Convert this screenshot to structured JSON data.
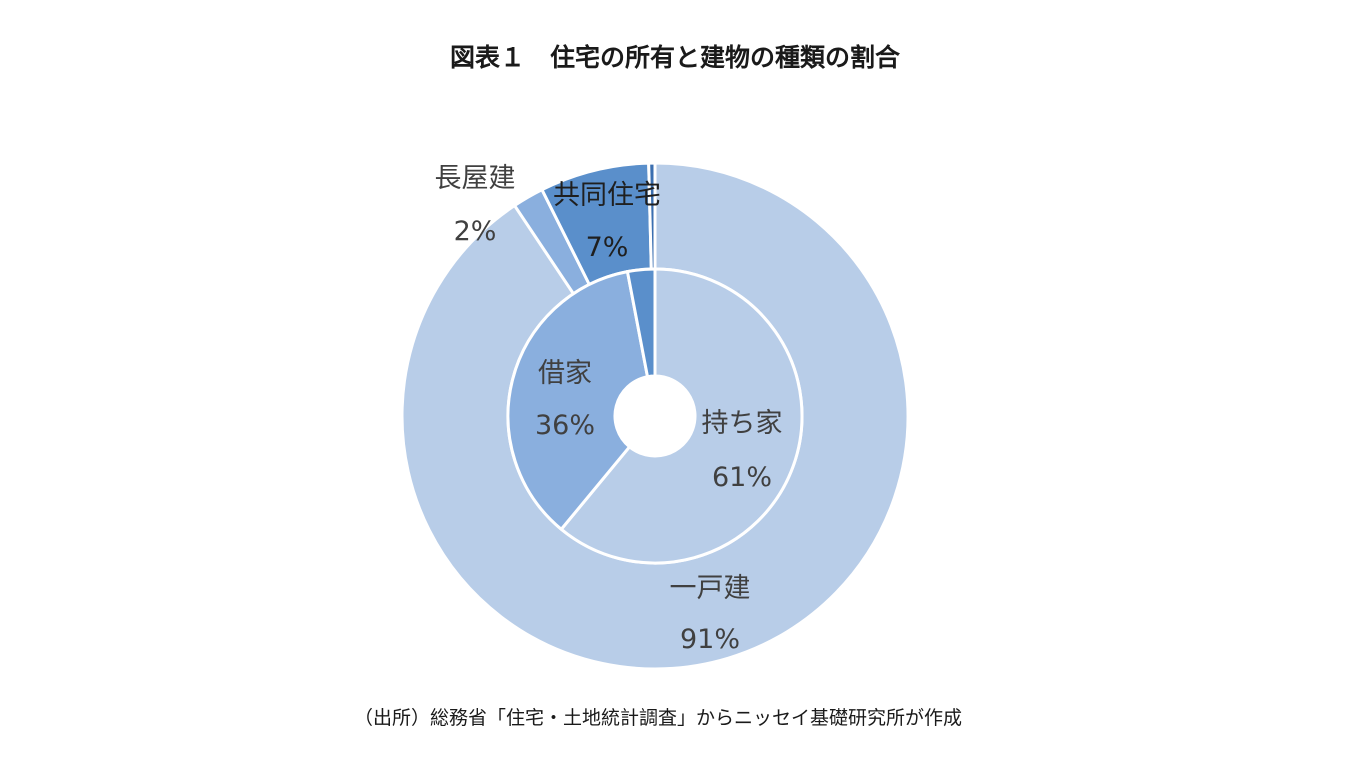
{
  "title": "図表１　住宅の所有と建物の種類の割合",
  "source": "（出所）総務省「住宅・土地統計調査」からニッセイ基礎研究所が作成",
  "chart_data": [
    {
      "type": "pie",
      "ring": "inner",
      "title": "",
      "slices": [
        {
          "label": "持ち家",
          "value": 61,
          "value_label": "61%",
          "color": "#b8cde8"
        },
        {
          "label": "借家",
          "value": 36,
          "value_label": "36%",
          "color": "#8aafde"
        },
        {
          "label": "",
          "value": 3,
          "value_label": "",
          "color": "#5a8fcb"
        }
      ]
    },
    {
      "type": "pie",
      "ring": "outer",
      "title": "",
      "slices": [
        {
          "label": "一戸建",
          "value": 91,
          "value_label": "91%",
          "color": "#b8cde8"
        },
        {
          "label": "長屋建",
          "value": 2,
          "value_label": "2%",
          "color": "#8aafde"
        },
        {
          "label": "共同住宅",
          "value": 7,
          "value_label": "7%",
          "color": "#5a8fcb"
        },
        {
          "label": "",
          "value": 0.4,
          "value_label": "",
          "color": "#3b6fb0"
        }
      ]
    }
  ]
}
